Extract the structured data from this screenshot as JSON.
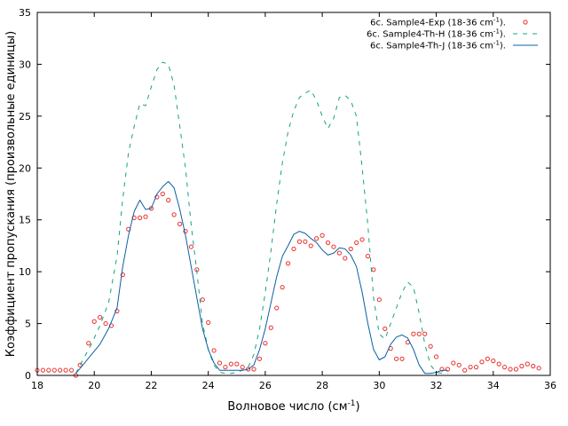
{
  "chart_data": {
    "type": "line",
    "xlabel": "Волновое число (см",
    "xlabel_sup": "-1",
    "xlabel_tail": ")",
    "ylabel": "Коэффициент пропускания (произвольные единицы)",
    "xlim": [
      18,
      36
    ],
    "ylim": [
      0,
      35
    ],
    "xticks": [
      18,
      20,
      22,
      24,
      26,
      28,
      30,
      32,
      34,
      36
    ],
    "yticks": [
      0,
      5,
      10,
      15,
      20,
      25,
      30,
      35
    ],
    "grid": false,
    "legend_placement": "top-right",
    "series": [
      {
        "name": "6c. Sample4-Exp (18-36 cm-1).",
        "legend_main": "6c. Sample4-Exp (18-36 cm",
        "legend_sup": "-1",
        "legend_tail": ").",
        "style": "markers",
        "color": "#e8302a",
        "x": [
          18.0,
          18.2,
          18.4,
          18.6,
          18.8,
          19.0,
          19.2,
          19.35,
          19.5,
          19.8,
          20.0,
          20.2,
          20.4,
          20.6,
          20.8,
          21.0,
          21.2,
          21.4,
          21.6,
          21.8,
          22.0,
          22.2,
          22.4,
          22.6,
          22.8,
          23.0,
          23.2,
          23.4,
          23.6,
          23.8,
          24.0,
          24.2,
          24.4,
          24.6,
          24.8,
          25.0,
          25.2,
          25.4,
          25.6,
          25.8,
          26.0,
          26.2,
          26.4,
          26.6,
          26.8,
          27.0,
          27.2,
          27.4,
          27.6,
          27.8,
          28.0,
          28.2,
          28.4,
          28.6,
          28.8,
          29.0,
          29.2,
          29.4,
          29.6,
          29.8,
          30.0,
          30.2,
          30.4,
          30.6,
          30.8,
          31.0,
          31.2,
          31.4,
          31.6,
          31.8,
          32.0,
          32.2,
          32.4,
          32.6,
          32.8,
          33.0,
          33.2,
          33.4,
          33.6,
          33.8,
          34.0,
          34.2,
          34.4,
          34.6,
          34.8,
          35.0,
          35.2,
          35.4,
          35.6
        ],
        "y": [
          0.5,
          0.5,
          0.5,
          0.5,
          0.5,
          0.5,
          0.5,
          0.0,
          1.0,
          3.1,
          5.2,
          5.6,
          5.0,
          4.8,
          6.2,
          9.7,
          14.1,
          15.2,
          15.2,
          15.3,
          16.1,
          17.2,
          17.5,
          16.9,
          15.5,
          14.6,
          13.9,
          12.4,
          10.2,
          7.3,
          5.1,
          2.4,
          1.2,
          0.8,
          1.1,
          1.1,
          0.8,
          0.6,
          0.6,
          1.6,
          3.1,
          4.6,
          6.5,
          8.5,
          10.8,
          12.2,
          12.9,
          12.9,
          12.5,
          13.2,
          13.5,
          12.8,
          12.4,
          11.8,
          11.3,
          12.2,
          12.8,
          13.1,
          11.5,
          10.2,
          7.3,
          4.5,
          2.6,
          1.6,
          1.6,
          3.2,
          4.0,
          4.0,
          4.0,
          2.8,
          1.8,
          0.6,
          0.6,
          1.2,
          1.0,
          0.5,
          0.8,
          0.8,
          1.3,
          1.6,
          1.4,
          1.1,
          0.8,
          0.6,
          0.6,
          0.9,
          1.1,
          0.9,
          0.7
        ]
      },
      {
        "name": "6c. Sample4-Th-H (18-36 cm-1).",
        "legend_main": "6c. Sample4-Th-H (18-36 cm",
        "legend_sup": "-1",
        "legend_tail": ").",
        "style": "dashed",
        "color": "#14a37d",
        "x": [
          19.35,
          19.6,
          19.9,
          20.2,
          20.5,
          20.8,
          21.0,
          21.2,
          21.4,
          21.6,
          21.8,
          22.0,
          22.2,
          22.4,
          22.6,
          22.8,
          23.0,
          23.2,
          23.4,
          23.6,
          23.8,
          24.0,
          24.2,
          24.4,
          24.6,
          24.8,
          25.0,
          25.2,
          25.4,
          25.6,
          25.8,
          26.0,
          26.2,
          26.4,
          26.6,
          26.8,
          27.0,
          27.2,
          27.4,
          27.6,
          27.8,
          28.0,
          28.2,
          28.4,
          28.6,
          28.8,
          29.0,
          29.2,
          29.4,
          29.6,
          29.8,
          30.0,
          30.2,
          30.4,
          30.6,
          30.8,
          31.0,
          31.2,
          31.4,
          31.6,
          31.8,
          32.0,
          32.2,
          32.4
        ],
        "y": [
          0.2,
          1.5,
          3.0,
          4.8,
          7.0,
          11.5,
          17.0,
          21.5,
          24.0,
          26.2,
          26.0,
          27.8,
          29.5,
          30.2,
          30.0,
          28.0,
          24.0,
          20.0,
          14.5,
          10.0,
          5.0,
          2.5,
          1.0,
          0.3,
          0.2,
          0.2,
          0.3,
          0.5,
          0.8,
          2.0,
          4.5,
          8.0,
          12.0,
          16.5,
          20.5,
          23.5,
          25.5,
          26.8,
          27.2,
          27.5,
          26.5,
          25.0,
          23.8,
          24.8,
          26.8,
          27.0,
          26.5,
          25.0,
          20.0,
          14.5,
          7.5,
          4.0,
          3.5,
          5.0,
          6.5,
          8.0,
          9.0,
          8.5,
          6.0,
          3.0,
          1.0,
          0.3,
          0.2,
          0.2
        ]
      },
      {
        "name": "6c. Sample4-Th-J (18-36 cm-1).",
        "legend_main": "6c. Sample4-Th-J (18-36 cm",
        "legend_sup": "-1",
        "legend_tail": ").",
        "style": "solid",
        "color": "#0b5fa5",
        "x": [
          19.35,
          19.6,
          19.9,
          20.2,
          20.5,
          20.8,
          21.0,
          21.2,
          21.4,
          21.6,
          21.8,
          22.0,
          22.2,
          22.4,
          22.6,
          22.8,
          23.0,
          23.2,
          23.4,
          23.6,
          23.8,
          24.0,
          24.2,
          24.4,
          24.6,
          24.8,
          25.0,
          25.2,
          25.4,
          25.6,
          25.8,
          26.0,
          26.2,
          26.4,
          26.6,
          26.8,
          27.0,
          27.2,
          27.4,
          27.6,
          27.8,
          28.0,
          28.2,
          28.4,
          28.6,
          28.8,
          29.0,
          29.2,
          29.4,
          29.6,
          29.8,
          30.0,
          30.2,
          30.4,
          30.6,
          30.8,
          31.0,
          31.2,
          31.4,
          31.6,
          31.8,
          32.0,
          32.2,
          32.4
        ],
        "y": [
          0.2,
          1.0,
          2.0,
          3.0,
          4.5,
          6.5,
          10.5,
          13.5,
          15.8,
          16.9,
          16.0,
          16.1,
          17.5,
          18.2,
          18.7,
          18.1,
          16.0,
          13.5,
          10.5,
          7.5,
          4.5,
          2.5,
          1.2,
          0.5,
          0.5,
          0.5,
          0.5,
          0.5,
          0.6,
          1.0,
          2.5,
          4.5,
          7.0,
          9.5,
          11.5,
          12.5,
          13.6,
          13.9,
          13.7,
          13.2,
          12.8,
          12.1,
          11.6,
          11.8,
          12.3,
          12.2,
          11.6,
          10.5,
          8.0,
          5.0,
          2.5,
          1.5,
          1.8,
          3.0,
          3.7,
          3.9,
          3.6,
          2.5,
          1.0,
          0.2,
          0.2,
          0.3,
          0.5,
          0.5
        ]
      }
    ]
  }
}
